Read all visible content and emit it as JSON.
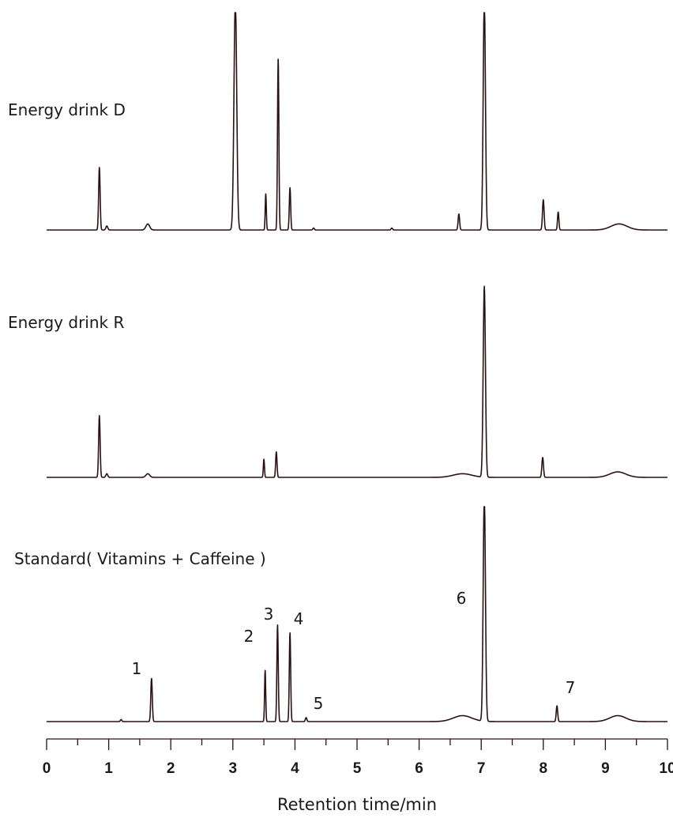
{
  "chart_data": {
    "type": "line",
    "title": "",
    "xlabel": "Retention time/min",
    "ylabel": "",
    "xlim": [
      0,
      10
    ],
    "x_ticks": [
      "0",
      "1",
      "2",
      "3",
      "4",
      "5",
      "6",
      "7",
      "8",
      "9",
      "10"
    ],
    "series": [
      {
        "name": "Energy drink D",
        "baseline": 0,
        "peaks": [
          {
            "rt": 0.85,
            "height": 0.31,
            "width": 0.012
          },
          {
            "rt": 0.97,
            "height": 0.02,
            "width": 0.015
          },
          {
            "rt": 1.63,
            "height": 0.03,
            "width": 0.03
          },
          {
            "rt": 3.04,
            "height": 1.15,
            "width": 0.022
          },
          {
            "rt": 3.53,
            "height": 0.18,
            "width": 0.009
          },
          {
            "rt": 3.73,
            "height": 0.85,
            "width": 0.011
          },
          {
            "rt": 3.92,
            "height": 0.21,
            "width": 0.011
          },
          {
            "rt": 4.3,
            "height": 0.01,
            "width": 0.012
          },
          {
            "rt": 5.56,
            "height": 0.01,
            "width": 0.012
          },
          {
            "rt": 6.64,
            "height": 0.08,
            "width": 0.012
          },
          {
            "rt": 7.05,
            "height": 1.15,
            "width": 0.018
          },
          {
            "rt": 8.0,
            "height": 0.15,
            "width": 0.013
          },
          {
            "rt": 8.24,
            "height": 0.09,
            "width": 0.011
          },
          {
            "rt": 9.22,
            "height": 0.03,
            "width": 0.13
          }
        ]
      },
      {
        "name": "Energy drink  R",
        "baseline": 0,
        "peaks": [
          {
            "rt": 0.85,
            "height": 0.34,
            "width": 0.012
          },
          {
            "rt": 0.97,
            "height": 0.02,
            "width": 0.015
          },
          {
            "rt": 1.63,
            "height": 0.02,
            "width": 0.03
          },
          {
            "rt": 3.5,
            "height": 0.1,
            "width": 0.009
          },
          {
            "rt": 3.7,
            "height": 0.14,
            "width": 0.011
          },
          {
            "rt": 6.7,
            "height": 0.02,
            "width": 0.15
          },
          {
            "rt": 7.05,
            "height": 1.05,
            "width": 0.018
          },
          {
            "rt": 7.99,
            "height": 0.11,
            "width": 0.013
          },
          {
            "rt": 9.2,
            "height": 0.03,
            "width": 0.13
          }
        ]
      },
      {
        "name": "Standard( Vitamins + Caffeine )",
        "baseline": 0,
        "peaks": [
          {
            "rt": 1.2,
            "height": 0.01,
            "width": 0.012
          },
          {
            "rt": 1.69,
            "height": 0.22,
            "width": 0.012
          },
          {
            "rt": 3.52,
            "height": 0.26,
            "width": 0.009
          },
          {
            "rt": 3.72,
            "height": 0.49,
            "width": 0.011
          },
          {
            "rt": 3.92,
            "height": 0.45,
            "width": 0.011
          },
          {
            "rt": 4.18,
            "height": 0.02,
            "width": 0.012
          },
          {
            "rt": 6.7,
            "height": 0.03,
            "width": 0.15
          },
          {
            "rt": 7.05,
            "height": 1.15,
            "width": 0.018
          },
          {
            "rt": 8.22,
            "height": 0.08,
            "width": 0.012
          },
          {
            "rt": 9.2,
            "height": 0.03,
            "width": 0.13
          }
        ]
      }
    ],
    "peak_annotations": [
      {
        "label": "1",
        "rt": 1.69
      },
      {
        "label": "2",
        "rt": 3.52
      },
      {
        "label": "3",
        "rt": 3.72
      },
      {
        "label": "4",
        "rt": 3.92
      },
      {
        "label": "5",
        "rt": 4.18
      },
      {
        "label": "6",
        "rt": 7.05
      },
      {
        "label": "7",
        "rt": 8.22
      }
    ],
    "colors": {
      "trace": "#2a1212"
    }
  }
}
